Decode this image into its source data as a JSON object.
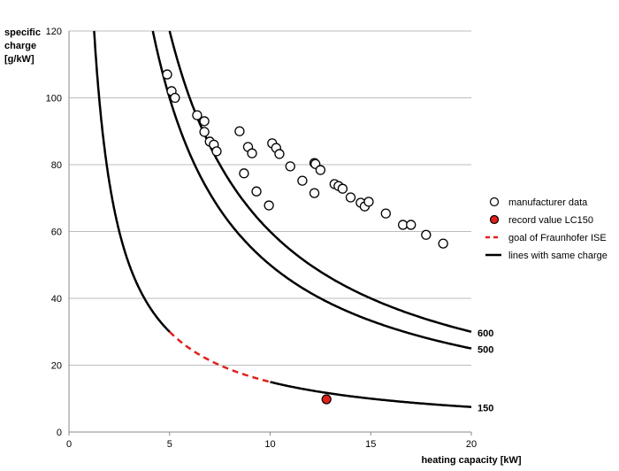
{
  "chart_data": {
    "type": "scatter",
    "title": "",
    "xlabel": "heating capacity [kW]",
    "ylabel": [
      "specific",
      "charge",
      "[g/kW]"
    ],
    "xlim": [
      0,
      20
    ],
    "ylim": [
      0,
      120
    ],
    "xticks": [
      0,
      5,
      10,
      15,
      20
    ],
    "yticks": [
      0,
      20,
      40,
      60,
      80,
      100,
      120
    ],
    "grid": "horizontal",
    "legend_position": "right",
    "series": [
      {
        "name": "manufacturer data",
        "kind": "scatter-open",
        "points": [
          [
            4.88,
            107
          ],
          [
            5.1,
            102
          ],
          [
            5.27,
            100
          ],
          [
            6.37,
            94.8
          ],
          [
            6.73,
            93
          ],
          [
            6.73,
            89.8
          ],
          [
            7.0,
            86.9
          ],
          [
            7.2,
            86
          ],
          [
            7.34,
            84
          ],
          [
            8.48,
            90
          ],
          [
            8.9,
            85.3
          ],
          [
            9.1,
            83.4
          ],
          [
            8.7,
            77.4
          ],
          [
            9.32,
            72
          ],
          [
            9.94,
            67.8
          ],
          [
            10.1,
            86.4
          ],
          [
            10.3,
            85
          ],
          [
            10.46,
            83.2
          ],
          [
            11.0,
            79.5
          ],
          [
            11.6,
            75.2
          ],
          [
            12.2,
            80.5
          ],
          [
            12.25,
            80.2
          ],
          [
            12.5,
            78.4
          ],
          [
            12.2,
            71.5
          ],
          [
            13.2,
            74.2
          ],
          [
            13.4,
            73.6
          ],
          [
            13.6,
            72.8
          ],
          [
            14.0,
            70.2
          ],
          [
            14.5,
            68.6
          ],
          [
            14.7,
            67.5
          ],
          [
            14.9,
            68.9
          ],
          [
            15.75,
            65.4
          ],
          [
            16.6,
            62
          ],
          [
            17.0,
            62
          ],
          [
            17.75,
            59
          ],
          [
            18.6,
            56.4
          ]
        ]
      },
      {
        "name": "record value LC150",
        "kind": "scatter-filled",
        "color": "#e0201c",
        "points": [
          [
            12.8,
            9.8
          ]
        ]
      },
      {
        "name": "goal of Fraunhofer ISE",
        "kind": "dashed-line",
        "color": "#e0201c",
        "charge": 150,
        "x_range": [
          5,
          10
        ]
      },
      {
        "name": "lines with same charge",
        "kind": "line",
        "color": "#000000",
        "curves": [
          {
            "charge": 150,
            "label": "150"
          },
          {
            "charge": 500,
            "label": "500"
          },
          {
            "charge": 600,
            "label": "600"
          }
        ]
      }
    ]
  }
}
